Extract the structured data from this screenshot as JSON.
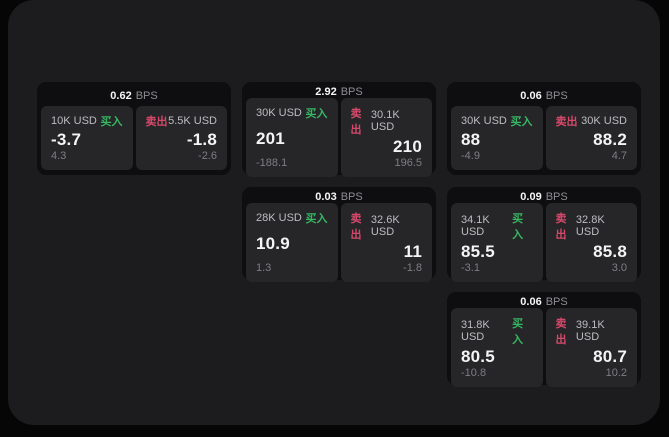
{
  "labels": {
    "bps_unit": "BPS",
    "buy": "买入",
    "sell": "卖出"
  },
  "colors": {
    "buy_green": "#35b763",
    "sell_red": "#d6496b",
    "panel_bg": "#1c1c1e",
    "card_bg": "#0e0e10",
    "pane_bg": "#262628"
  },
  "cards": [
    {
      "bps": "0.62",
      "buy": {
        "amount": "10K USD",
        "value": "-3.7",
        "delta": "4.3"
      },
      "sell": {
        "amount": "5.5K USD",
        "value": "-1.8",
        "delta": "-2.6"
      }
    },
    {
      "bps": "2.92",
      "buy": {
        "amount": "30K USD",
        "value": "201",
        "delta": "-188.1"
      },
      "sell": {
        "amount": "30.1K USD",
        "value": "210",
        "delta": "196.5"
      }
    },
    {
      "bps": "0.06",
      "buy": {
        "amount": "30K USD",
        "value": "88",
        "delta": "-4.9"
      },
      "sell": {
        "amount": "30K USD",
        "value": "88.2",
        "delta": "4.7"
      }
    },
    {
      "bps": "0.03",
      "buy": {
        "amount": "28K USD",
        "value": "10.9",
        "delta": "1.3"
      },
      "sell": {
        "amount": "32.6K USD",
        "value": "11",
        "delta": "-1.8"
      }
    },
    {
      "bps": "0.09",
      "buy": {
        "amount": "34.1K USD",
        "value": "85.5",
        "delta": "-3.1"
      },
      "sell": {
        "amount": "32.8K USD",
        "value": "85.8",
        "delta": "3.0"
      }
    },
    {
      "bps": "0.06",
      "buy": {
        "amount": "31.8K USD",
        "value": "80.5",
        "delta": "-10.8"
      },
      "sell": {
        "amount": "39.1K USD",
        "value": "80.7",
        "delta": "10.2"
      }
    }
  ]
}
